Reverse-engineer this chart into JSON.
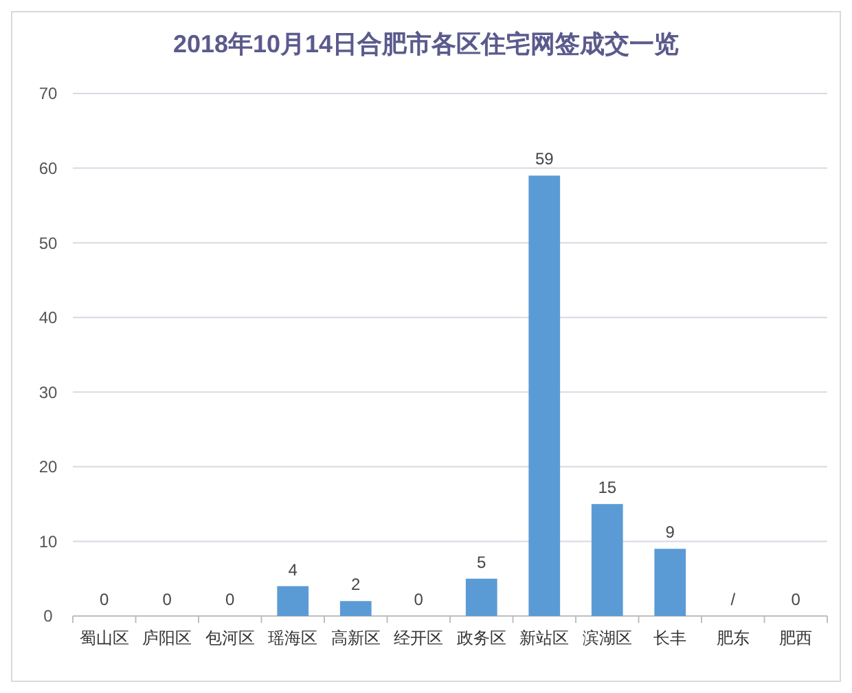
{
  "chart_data": {
    "type": "bar",
    "title": "2018年10月14日合肥市各区住宅网签成交一览",
    "categories": [
      "蜀山区",
      "庐阳区",
      "包河区",
      "瑶海区",
      "高新区",
      "经开区",
      "政务区",
      "新站区",
      "滨湖区",
      "长丰",
      "肥东",
      "肥西"
    ],
    "values": [
      0,
      0,
      0,
      4,
      2,
      0,
      5,
      59,
      15,
      9,
      null,
      0
    ],
    "value_labels": [
      "0",
      "0",
      "0",
      "4",
      "2",
      "0",
      "5",
      "59",
      "15",
      "9",
      "/",
      "0"
    ],
    "color": "#5b9bd5",
    "ylim": [
      0,
      70
    ],
    "yticks": [
      0,
      10,
      20,
      30,
      40,
      50,
      60,
      70
    ],
    "grid": "y"
  }
}
